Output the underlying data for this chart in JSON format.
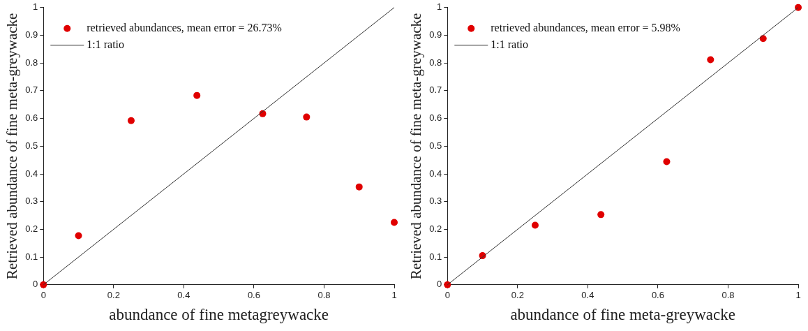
{
  "chart_data": [
    {
      "type": "scatter",
      "xlabel": "abundance of fine metagreywacke",
      "ylabel": "Retrieved abundance of fine meta-greywacke",
      "xlim": [
        0,
        1
      ],
      "ylim": [
        0,
        1
      ],
      "xticks": [
        0,
        0.2,
        0.4,
        0.6,
        0.8,
        1
      ],
      "yticks": [
        0,
        0.1,
        0.2,
        0.3,
        0.4,
        0.5,
        0.6,
        0.7,
        0.8,
        0.9,
        1
      ],
      "grid": false,
      "legend": "top left",
      "series": [
        {
          "name": "retrieved abundances, mean error = 26.73%",
          "type": "scatter",
          "marker": "circle",
          "color": "#e00000",
          "x": [
            0,
            0.1,
            0.25,
            0.4375,
            0.625,
            0.75,
            0.9,
            1
          ],
          "values": [
            0,
            0.177,
            0.592,
            0.683,
            0.617,
            0.605,
            0.353,
            0.225
          ]
        },
        {
          "name": "1:1 ratio",
          "type": "line",
          "marker": "none",
          "color": "#333333",
          "x": [
            0,
            1
          ],
          "values": [
            0,
            1
          ]
        }
      ]
    },
    {
      "type": "scatter",
      "xlabel": "abundance of fine meta-greywacke",
      "ylabel": "Retrieved abundance of fine meta-greywacke",
      "xlim": [
        0,
        1
      ],
      "ylim": [
        0,
        1
      ],
      "xticks": [
        0,
        0.2,
        0.4,
        0.6,
        0.8,
        1
      ],
      "yticks": [
        0,
        0.1,
        0.2,
        0.3,
        0.4,
        0.5,
        0.6,
        0.7,
        0.8,
        0.9,
        1
      ],
      "grid": false,
      "legend": "top left",
      "series": [
        {
          "name": "retrieved abundances, mean error = 5.98%",
          "type": "scatter",
          "marker": "circle",
          "color": "#e00000",
          "x": [
            0,
            0.1,
            0.25,
            0.4375,
            0.625,
            0.75,
            0.9,
            1
          ],
          "values": [
            0,
            0.105,
            0.215,
            0.253,
            0.444,
            0.812,
            0.888,
            1
          ]
        },
        {
          "name": "1:1 ratio",
          "type": "line",
          "marker": "none",
          "color": "#333333",
          "x": [
            0,
            1
          ],
          "values": [
            0,
            1
          ]
        }
      ]
    }
  ]
}
